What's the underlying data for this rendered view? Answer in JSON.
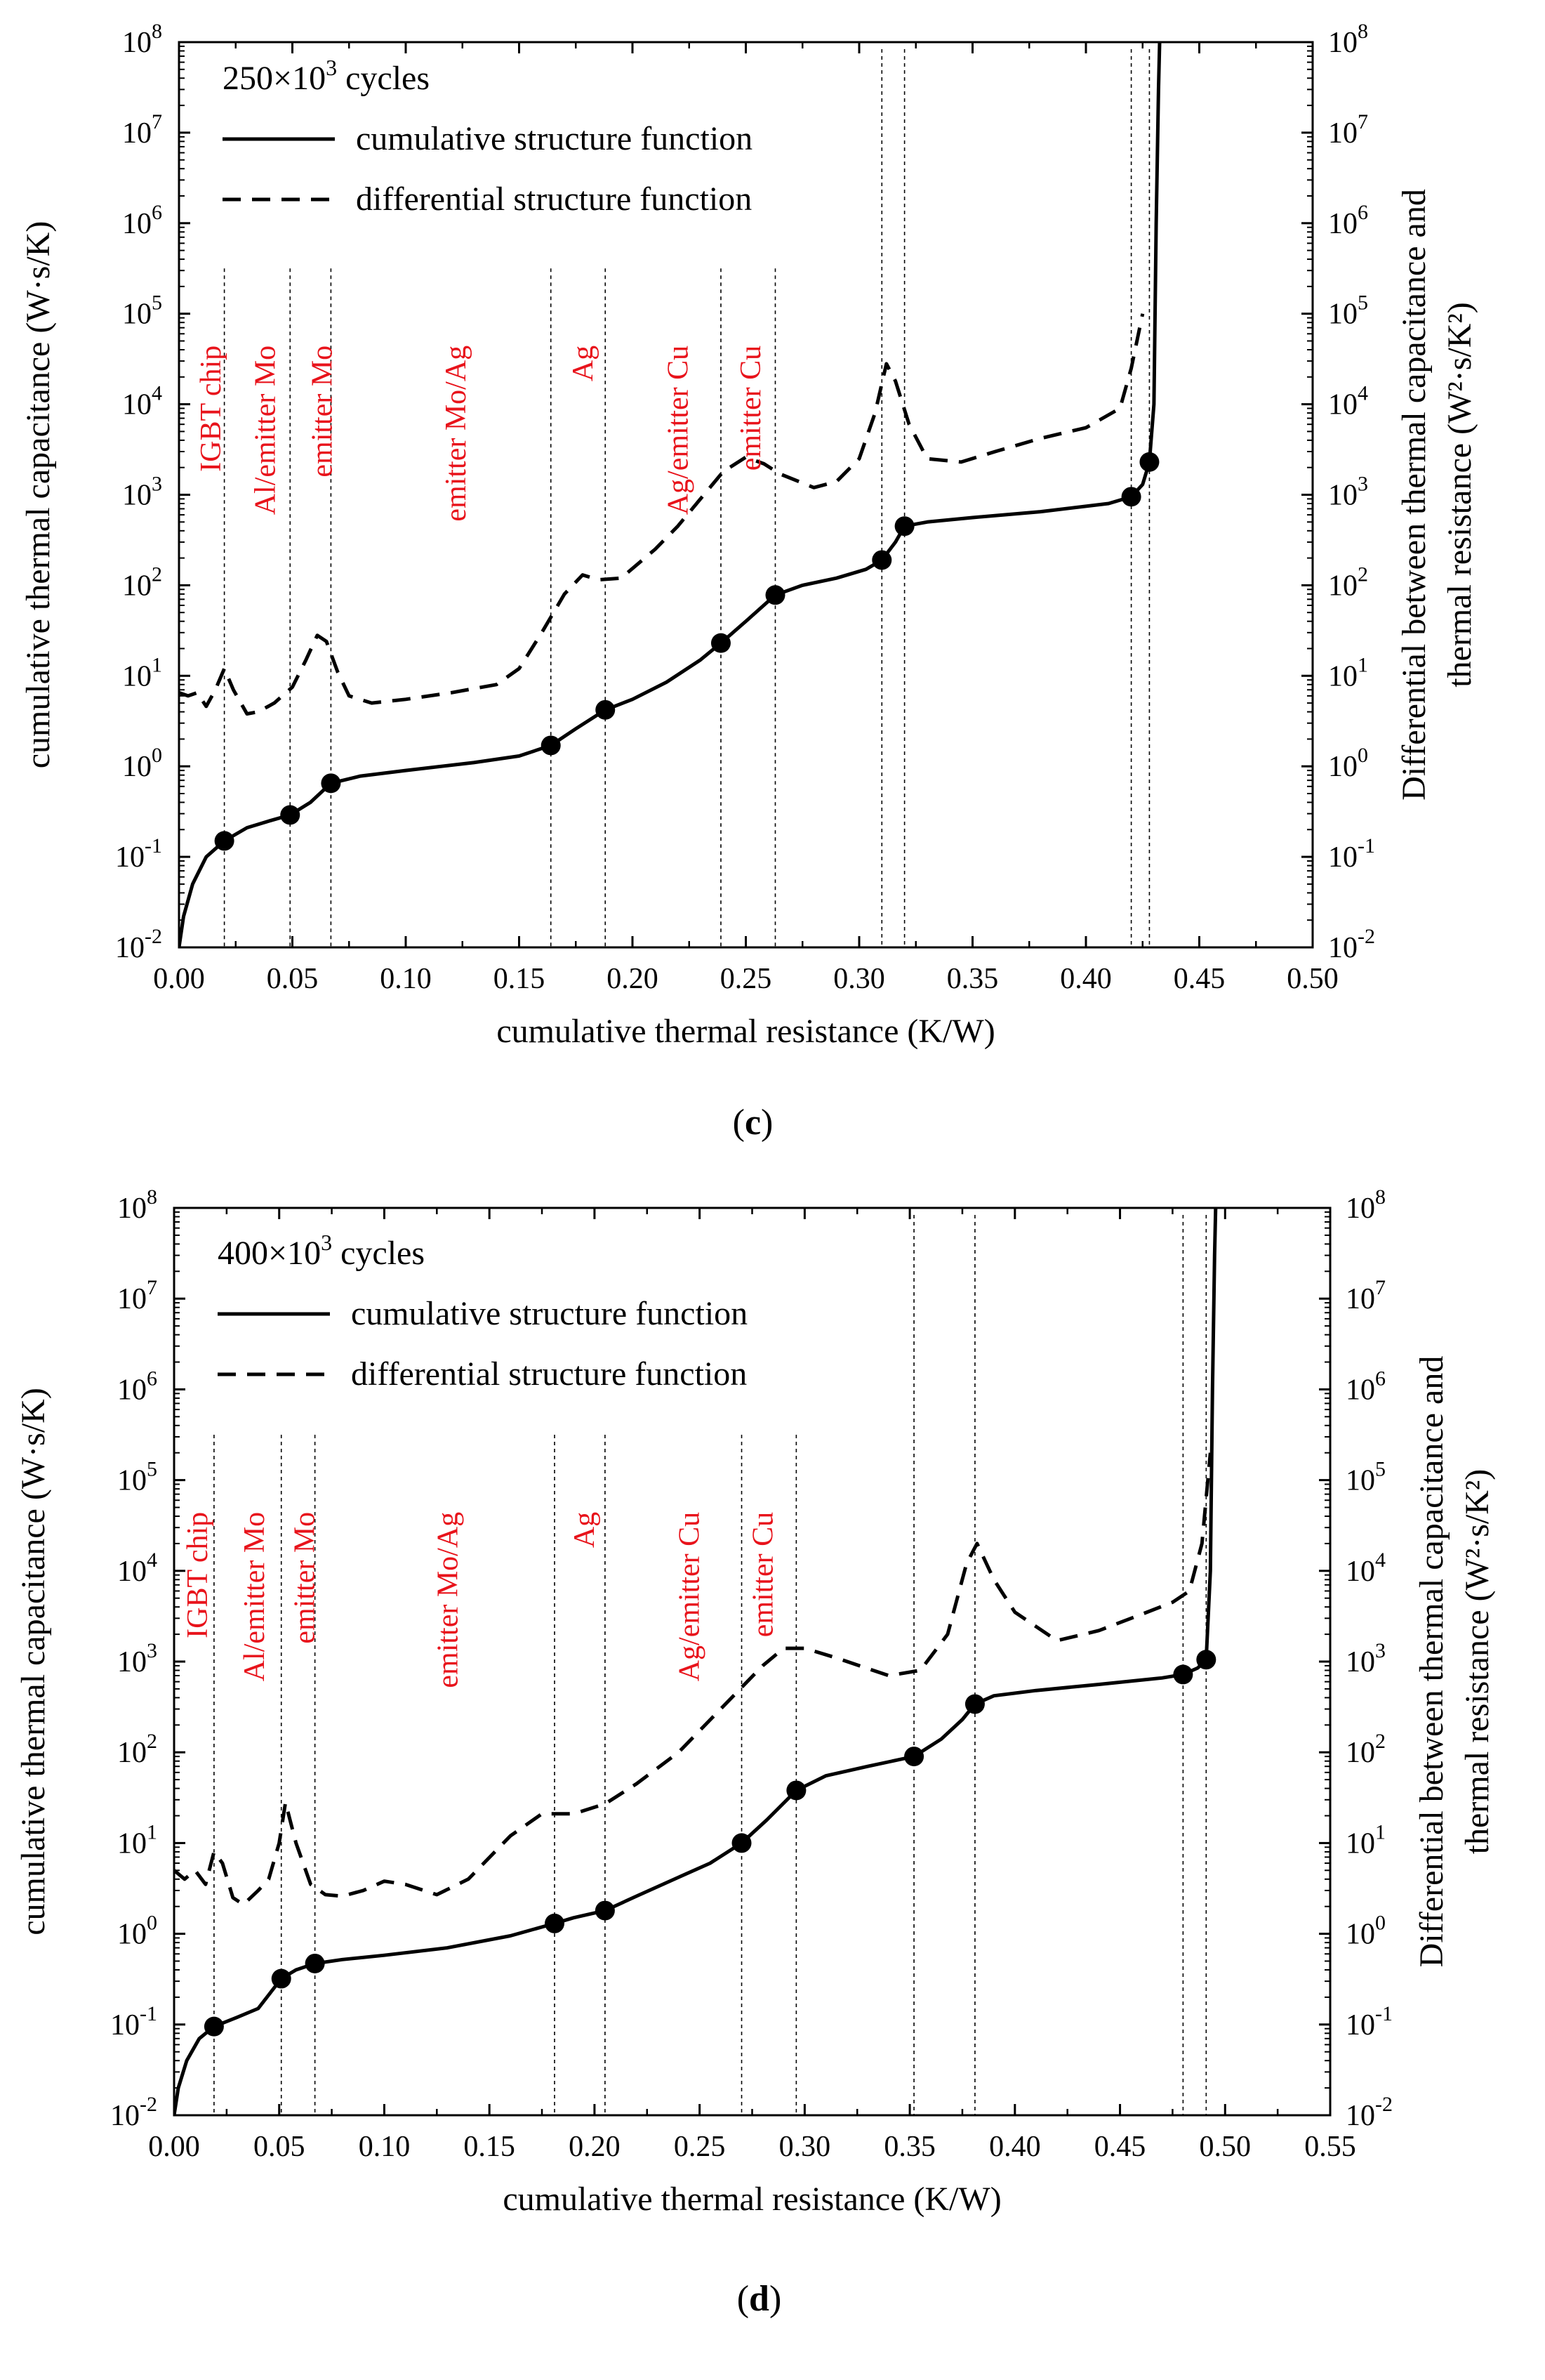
{
  "chart_data": [
    {
      "type": "line",
      "panel": "(c)",
      "panel_letter": "c",
      "title": "250×10³ cycles",
      "title_base": "250×10",
      "title_exp": "3",
      "title_suffix": " cycles",
      "xlabel": "cumulative thermal resistance (K/W)",
      "ylabel": "cumulative thermal capacitance (W·s/K)",
      "ylabel_right_line1": "Differential between thermal capacitance and",
      "ylabel_right_line2": "thermal resistance (W²·s/K²)",
      "xlim": [
        0,
        0.5
      ],
      "xticks": [
        "0.00",
        "0.05",
        "0.10",
        "0.15",
        "0.20",
        "0.25",
        "0.30",
        "0.35",
        "0.40",
        "0.45",
        "0.50"
      ],
      "y_scale": "log",
      "ylim": [
        0.01,
        100000000
      ],
      "ytick_exponents": [
        "-2",
        "-1",
        "0",
        "1",
        "2",
        "3",
        "4",
        "5",
        "6",
        "7",
        "8"
      ],
      "ytick_base": "10",
      "legend": [
        "cumulative structure function",
        "differential structure function"
      ],
      "legend_position": "top-left",
      "region_labels": [
        {
          "text": "IGBT chip",
          "x": 0.014
        },
        {
          "text": "Al/emitter Mo",
          "x": 0.038
        },
        {
          "text": "emitter Mo",
          "x": 0.063
        },
        {
          "text": "emitter Mo/Ag",
          "x": 0.122
        },
        {
          "text": "Ag",
          "x": 0.178
        },
        {
          "text": "Ag/emitter Cu",
          "x": 0.22
        },
        {
          "text": "emitter Cu",
          "x": 0.252
        }
      ],
      "boundaries": [
        0.02,
        0.049,
        0.067,
        0.164,
        0.188,
        0.239,
        0.263,
        0.31,
        0.32,
        0.42,
        0.428
      ],
      "markers": {
        "x": [
          0.02,
          0.049,
          0.067,
          0.164,
          0.188,
          0.239,
          0.263,
          0.31,
          0.32,
          0.42,
          0.428
        ],
        "y": [
          0.15,
          0.29,
          0.65,
          1.7,
          4.2,
          23,
          78,
          190,
          450,
          950,
          2300
        ]
      },
      "series": [
        {
          "name": "cumulative structure function",
          "style": "solid",
          "x": [
            0.0,
            0.002,
            0.006,
            0.012,
            0.02,
            0.03,
            0.04,
            0.049,
            0.058,
            0.067,
            0.08,
            0.1,
            0.13,
            0.15,
            0.164,
            0.175,
            0.188,
            0.2,
            0.215,
            0.23,
            0.239,
            0.25,
            0.263,
            0.275,
            0.29,
            0.303,
            0.31,
            0.316,
            0.32,
            0.33,
            0.35,
            0.38,
            0.41,
            0.42,
            0.425,
            0.428,
            0.43,
            0.431,
            0.432,
            0.4325
          ],
          "y": [
            0.01,
            0.022,
            0.05,
            0.1,
            0.15,
            0.21,
            0.25,
            0.29,
            0.4,
            0.65,
            0.78,
            0.9,
            1.1,
            1.3,
            1.7,
            2.6,
            4.2,
            5.5,
            8.5,
            15,
            23,
            40,
            78,
            100,
            120,
            150,
            190,
            300,
            450,
            500,
            560,
            650,
            800,
            950,
            1300,
            2300,
            10000,
            1000000,
            30000000,
            100000000
          ]
        },
        {
          "name": "differential structure function",
          "style": "dashed",
          "x": [
            0.0,
            0.004,
            0.008,
            0.012,
            0.016,
            0.02,
            0.024,
            0.03,
            0.035,
            0.042,
            0.05,
            0.056,
            0.061,
            0.065,
            0.07,
            0.075,
            0.085,
            0.1,
            0.12,
            0.14,
            0.15,
            0.16,
            0.17,
            0.178,
            0.185,
            0.195,
            0.21,
            0.22,
            0.23,
            0.24,
            0.25,
            0.258,
            0.265,
            0.28,
            0.29,
            0.3,
            0.307,
            0.312,
            0.316,
            0.322,
            0.33,
            0.345,
            0.36,
            0.38,
            0.4,
            0.415,
            0.42,
            0.425
          ],
          "y": [
            6.5,
            6.0,
            6.5,
            4.6,
            7.0,
            12,
            7.0,
            3.8,
            4.0,
            5.0,
            7.5,
            15,
            28,
            24,
            11,
            6.0,
            5.0,
            5.5,
            6.5,
            8.0,
            12,
            30,
            80,
            130,
            115,
            120,
            250,
            450,
            900,
            1800,
            2600,
            2200,
            1700,
            1200,
            1400,
            2500,
            8000,
            28000,
            18000,
            6000,
            2500,
            2300,
            3000,
            4200,
            5500,
            9000,
            25000,
            100000
          ]
        }
      ]
    },
    {
      "type": "line",
      "panel": "(d)",
      "panel_letter": "d",
      "title": "400×10³ cycles",
      "title_base": "400×10",
      "title_exp": "3",
      "title_suffix": " cycles",
      "xlabel": "cumulative thermal resistance (K/W)",
      "ylabel": "cumulative thermal capacitance (W·s/K)",
      "ylabel_right_line1": "Differential between thermal capacitance and",
      "ylabel_right_line2": "thermal resistance (W²·s/K²)",
      "xlim": [
        0,
        0.55
      ],
      "xticks": [
        "0.00",
        "0.05",
        "0.10",
        "0.15",
        "0.20",
        "0.25",
        "0.30",
        "0.35",
        "0.40",
        "0.45",
        "0.50",
        "0.55"
      ],
      "y_scale": "log",
      "ylim": [
        0.01,
        100000000
      ],
      "ytick_exponents": [
        "-2",
        "-1",
        "0",
        "1",
        "2",
        "3",
        "4",
        "5",
        "6",
        "7",
        "8"
      ],
      "ytick_base": "10",
      "legend": [
        "cumulative structure function",
        "differential structure function"
      ],
      "legend_position": "top-left",
      "region_labels": [
        {
          "text": "IGBT chip",
          "x": 0.011
        },
        {
          "text": "Al/emitter Mo",
          "x": 0.038
        },
        {
          "text": "emitter Mo",
          "x": 0.062
        },
        {
          "text": "emitter Mo/Ag",
          "x": 0.13
        },
        {
          "text": "Ag",
          "x": 0.195
        },
        {
          "text": "Ag/emitter Cu",
          "x": 0.245
        },
        {
          "text": "emitter Cu",
          "x": 0.28
        }
      ],
      "boundaries": [
        0.019,
        0.051,
        0.067,
        0.181,
        0.205,
        0.27,
        0.296,
        0.352,
        0.381,
        0.48,
        0.491
      ],
      "markers": {
        "x": [
          0.019,
          0.051,
          0.067,
          0.181,
          0.205,
          0.27,
          0.296,
          0.352,
          0.381,
          0.48,
          0.491
        ],
        "y": [
          0.095,
          0.32,
          0.47,
          1.3,
          1.8,
          10,
          38,
          90,
          340,
          720,
          1050
        ]
      },
      "series": [
        {
          "name": "cumulative structure function",
          "style": "solid",
          "x": [
            0.0,
            0.002,
            0.006,
            0.012,
            0.019,
            0.03,
            0.04,
            0.051,
            0.058,
            0.067,
            0.08,
            0.1,
            0.13,
            0.16,
            0.181,
            0.19,
            0.205,
            0.22,
            0.24,
            0.255,
            0.27,
            0.282,
            0.296,
            0.31,
            0.33,
            0.352,
            0.365,
            0.375,
            0.381,
            0.39,
            0.41,
            0.44,
            0.47,
            0.48,
            0.487,
            0.491,
            0.493,
            0.494,
            0.495,
            0.4955
          ],
          "y": [
            0.01,
            0.02,
            0.04,
            0.07,
            0.095,
            0.12,
            0.15,
            0.32,
            0.4,
            0.47,
            0.52,
            0.58,
            0.7,
            0.95,
            1.3,
            1.5,
            1.8,
            2.6,
            4.2,
            6.0,
            10,
            18,
            38,
            55,
            70,
            90,
            140,
            230,
            340,
            420,
            480,
            560,
            660,
            720,
            850,
            1050,
            10000,
            1000000,
            30000000,
            100000000
          ]
        },
        {
          "name": "differential structure function",
          "style": "dashed",
          "x": [
            0.0,
            0.005,
            0.01,
            0.015,
            0.019,
            0.023,
            0.028,
            0.033,
            0.04,
            0.045,
            0.05,
            0.053,
            0.058,
            0.065,
            0.072,
            0.08,
            0.09,
            0.1,
            0.11,
            0.125,
            0.14,
            0.16,
            0.175,
            0.19,
            0.205,
            0.22,
            0.24,
            0.26,
            0.28,
            0.29,
            0.3,
            0.315,
            0.34,
            0.355,
            0.368,
            0.377,
            0.382,
            0.39,
            0.4,
            0.42,
            0.44,
            0.46,
            0.475,
            0.483,
            0.489,
            0.493
          ],
          "y": [
            5.0,
            4.0,
            5.0,
            3.5,
            8.0,
            6.0,
            2.5,
            2.1,
            3.0,
            4.0,
            10,
            28,
            10,
            3.5,
            2.7,
            2.6,
            3.0,
            3.8,
            3.5,
            2.7,
            4.0,
            12,
            21,
            21,
            27,
            45,
            100,
            300,
            900,
            1400,
            1400,
            1100,
            700,
            800,
            2000,
            12000,
            20000,
            8000,
            3500,
            1700,
            2200,
            3300,
            4500,
            6000,
            20000,
            200000
          ]
        }
      ]
    }
  ]
}
